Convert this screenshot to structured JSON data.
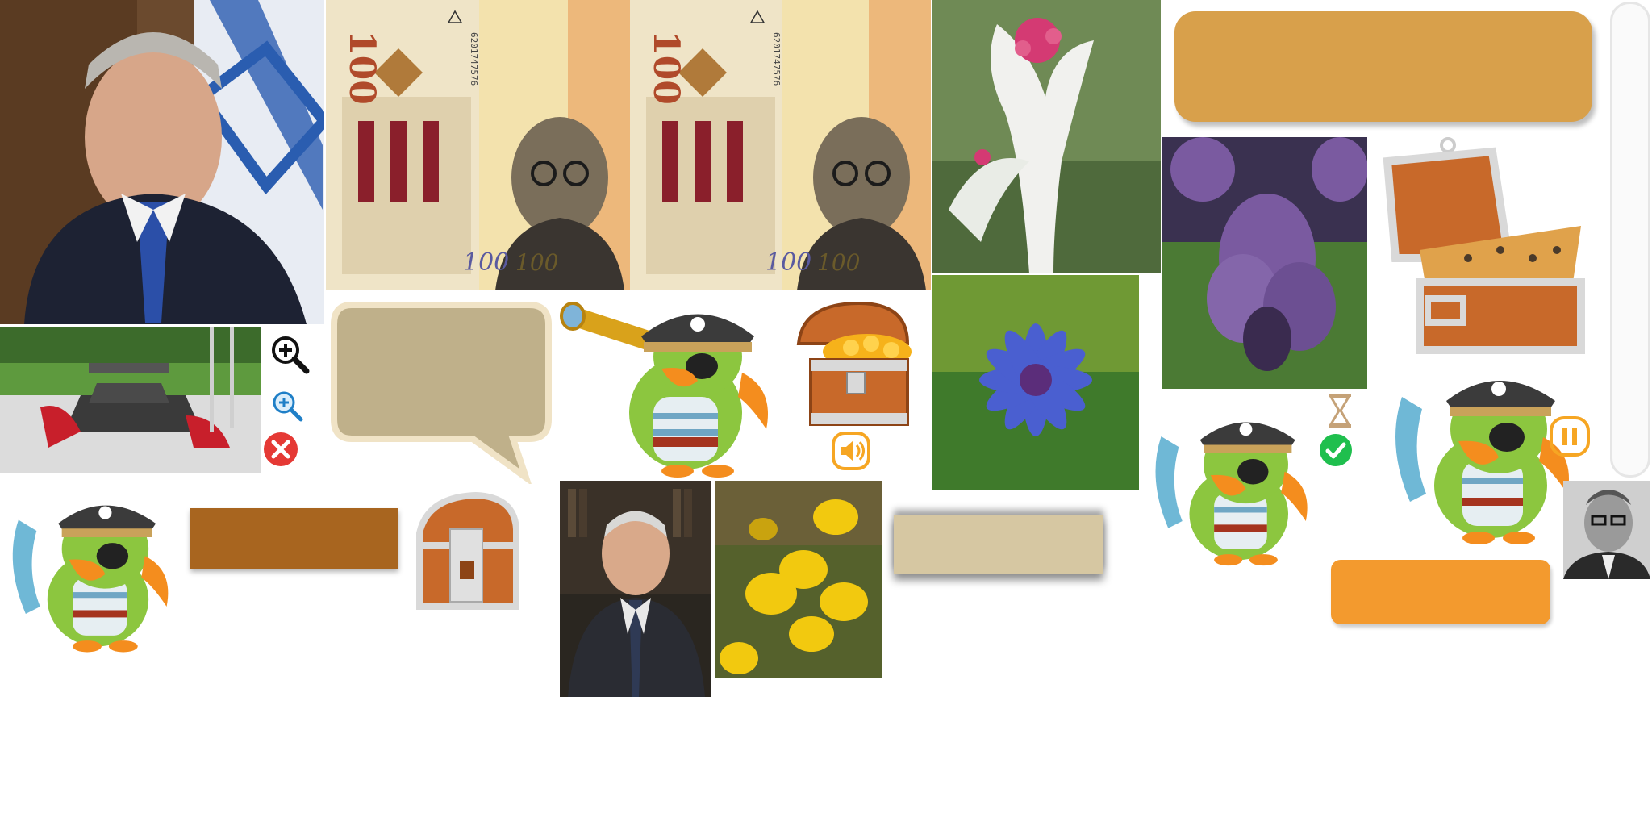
{
  "atlas": {
    "colors": {
      "panel_orange_dark": "#d8a04b",
      "panel_brown": "#a8651f",
      "panel_tan": "#d6c7a2",
      "panel_bright_orange": "#f39a2e",
      "bubble_tan": "#bfb08a",
      "bubble_border": "#f0e3c6",
      "icon_green": "#1fbf4e",
      "icon_red": "#e53935",
      "icon_blue": "#1f7fc7",
      "parrot_green": "#8cc63f",
      "pirate_hat": "#3b3b3b",
      "chest_wood": "#c8692a",
      "gold": "#f6b21a",
      "iris_purple": "#7a5aa0",
      "cornflower_blue": "#4a5fd0",
      "broom_yellow": "#f2c90f"
    },
    "icons": [
      "zoom-in-icon",
      "zoom-in-small-icon",
      "close-icon",
      "speaker-icon",
      "hourglass-icon",
      "check-icon",
      "pause-icon"
    ],
    "banknote": {
      "denomination": "100",
      "serial": "6201747576"
    }
  }
}
